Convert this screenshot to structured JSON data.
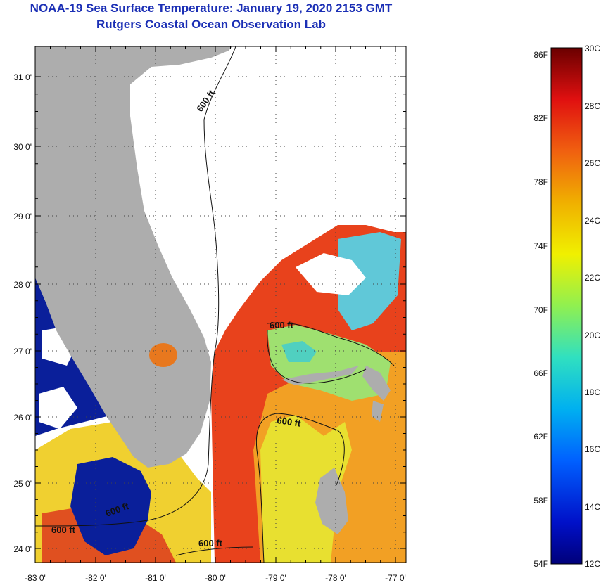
{
  "title": {
    "line1": "NOAA-19 Sea Surface Temperature:  January 19, 2020 2153 GMT",
    "line2": "Rutgers Coastal Ocean Observation Lab"
  },
  "colors": {
    "title": "#1b2fb5",
    "land": "#adadad",
    "cloud": "#ffffff",
    "gulf_stream": "#e8401a",
    "warm_shelf": "#f0a020"
  },
  "map": {
    "lat_ticks": [
      "31 0'",
      "30 0'",
      "29 0'",
      "28 0'",
      "27 0'",
      "26 0'",
      "25 0'",
      "24 0'"
    ],
    "lon_ticks": [
      "-83 0'",
      "-82 0'",
      "-81 0'",
      "-80 0'",
      "-79 0'",
      "-78 0'",
      "-77 0'"
    ],
    "contour_labels": [
      "600 ft",
      "600 ft",
      "600 ft",
      "600 ft",
      "600 ft",
      "600 ft"
    ],
    "contour_depth": "600 ft"
  },
  "colorbar": {
    "fahrenheit_labels": [
      "86F",
      "82F",
      "78F",
      "74F",
      "70F",
      "66F",
      "62F",
      "58F",
      "54F"
    ],
    "celsius_labels": [
      "30C",
      "28C",
      "26C",
      "24C",
      "22C",
      "20C",
      "18C",
      "16C",
      "14C",
      "12C"
    ],
    "range_c": [
      12,
      30
    ],
    "range_f": [
      54,
      86
    ]
  }
}
